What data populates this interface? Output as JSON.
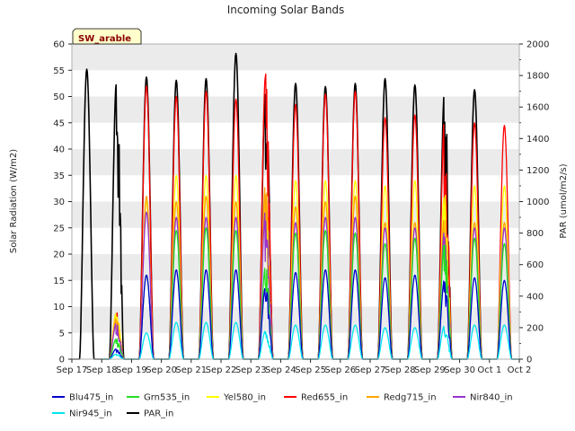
{
  "chart_data": {
    "type": "line",
    "title": "Incoming Solar Bands",
    "site_label": "SW_arable",
    "ylabel": "Solar Radiation (W/m2)",
    "y2label": "PAR (umol/m2/s)",
    "xlabel": "",
    "ylim": [
      0,
      60
    ],
    "y2lim": [
      0,
      2000
    ],
    "yticks": [
      0,
      5,
      10,
      15,
      20,
      25,
      30,
      35,
      40,
      45,
      50,
      55,
      60
    ],
    "y2ticks": [
      0,
      200,
      400,
      600,
      800,
      1000,
      1200,
      1400,
      1600,
      1800,
      2000
    ],
    "x_tick_labels": [
      "Sep 17",
      "Sep 18",
      "Sep 19",
      "Sep 20",
      "Sep 21",
      "Sep 22",
      "Sep 23",
      "Sep 24",
      "Sep 25",
      "Sep 26",
      "Sep 27",
      "Sep 28",
      "Sep 29",
      "Sep 30",
      "Oct 1",
      "Oct 2"
    ],
    "grid": "horizontal bands",
    "legend_position": "bottom",
    "days": [
      "Sep 17",
      "Sep 18",
      "Sep 19",
      "Sep 20",
      "Sep 21",
      "Sep 22",
      "Sep 23",
      "Sep 24",
      "Sep 25",
      "Sep 26",
      "Sep 27",
      "Sep 28",
      "Sep 29",
      "Sep 30",
      "Oct 1"
    ],
    "series": [
      {
        "name": "Blu475_in",
        "color": "#0000cc",
        "axis": "left",
        "daily_peak": [
          null,
          2,
          16,
          17,
          17,
          17,
          14,
          16.5,
          17,
          17,
          15.5,
          16,
          15.5,
          15.5,
          15
        ]
      },
      {
        "name": "Grn535_in",
        "color": "#22dd22",
        "axis": "left",
        "daily_peak": [
          null,
          4,
          16,
          24.5,
          25,
          24.5,
          18,
          24,
          24.5,
          24,
          22,
          23,
          22.5,
          23,
          22
        ]
      },
      {
        "name": "Yel580_in",
        "color": "#ffff00",
        "axis": "left",
        "daily_peak": [
          null,
          9,
          30,
          35,
          35,
          35,
          31,
          34,
          34,
          34,
          33,
          34,
          32,
          33,
          33
        ]
      },
      {
        "name": "Red655_in",
        "color": "#ff0000",
        "axis": "left",
        "daily_peak": [
          null,
          9,
          52,
          50,
          51,
          49.5,
          55,
          48.5,
          50.5,
          51,
          46,
          46.5,
          46.5,
          45,
          44.5
        ]
      },
      {
        "name": "Redg715_in",
        "color": "#ffa500",
        "axis": "left",
        "daily_peak": [
          null,
          8,
          31,
          30,
          31,
          30,
          34,
          29,
          30,
          31,
          26,
          26,
          27.5,
          26,
          26
        ]
      },
      {
        "name": "Nir840_in",
        "color": "#9933cc",
        "axis": "left",
        "daily_peak": [
          null,
          7,
          28,
          27,
          27,
          27,
          29,
          26,
          27,
          27,
          25,
          25,
          25,
          25,
          25
        ]
      },
      {
        "name": "Nir945_in",
        "color": "#00e5ee",
        "axis": "left",
        "daily_peak": [
          null,
          1,
          5,
          7,
          7,
          7,
          5.5,
          6.5,
          6.5,
          6.5,
          6,
          6,
          6.5,
          6.5,
          6.5
        ]
      },
      {
        "name": "PAR_in",
        "color": "#000000",
        "axis": "right",
        "daily_peak": [
          1840,
          1780,
          1790,
          1770,
          1780,
          1940,
          1750,
          1750,
          1730,
          1750,
          1780,
          1740,
          1730,
          1710,
          null
        ]
      }
    ]
  },
  "legend": {
    "items": [
      {
        "label": "Blu475_in",
        "color": "#0000cc"
      },
      {
        "label": "Grn535_in",
        "color": "#22dd22"
      },
      {
        "label": "Yel580_in",
        "color": "#ffff00"
      },
      {
        "label": "Red655_in",
        "color": "#ff0000"
      },
      {
        "label": "Redg715_in",
        "color": "#ffa500"
      },
      {
        "label": "Nir840_in",
        "color": "#9933cc"
      },
      {
        "label": "Nir945_in",
        "color": "#00e5ee"
      },
      {
        "label": "PAR_in",
        "color": "#000000"
      }
    ]
  }
}
